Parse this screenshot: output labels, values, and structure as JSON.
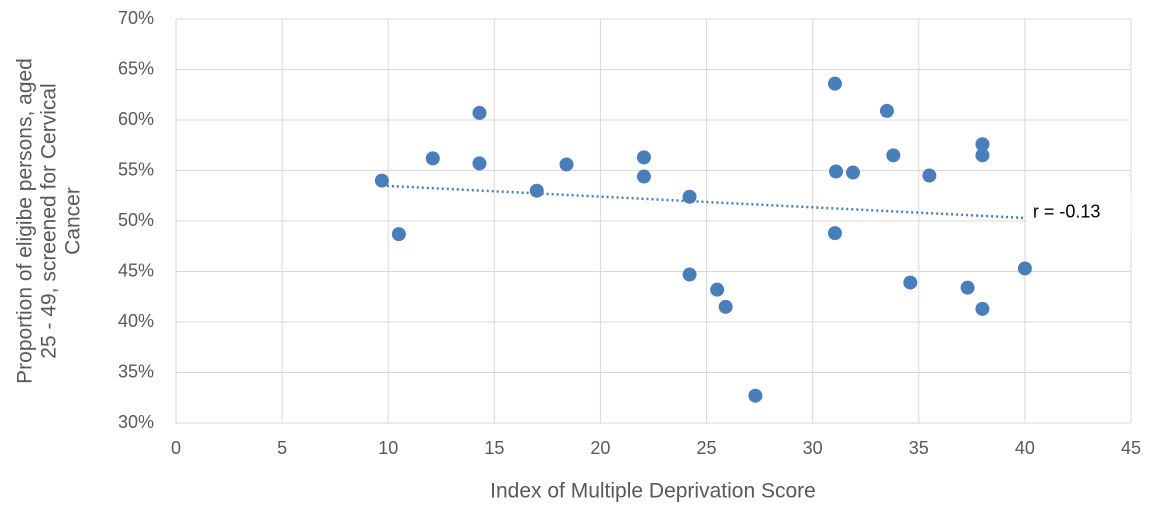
{
  "chart_data": {
    "type": "scatter",
    "x_label": "Index of Multiple Deprivation Score",
    "y_label": [
      "Proportion of eligibe persons, aged",
      "25 - 49, screened for Cervical",
      "Cancer"
    ],
    "annotation": "r = -0.13",
    "color": "#4a7ebb",
    "x": [
      9.7,
      10.5,
      12.1,
      14.3,
      14.3,
      17.0,
      18.4,
      22.05,
      22.05,
      24.2,
      24.2,
      25.5,
      25.9,
      27.3,
      31.05,
      31.1,
      31.05,
      31.9,
      33.5,
      33.8,
      35.5,
      34.6,
      37.3,
      38.0,
      38.0,
      38.0,
      40.0
    ],
    "values": [
      54.0,
      48.7,
      56.2,
      60.7,
      55.7,
      53.0,
      55.6,
      56.3,
      54.4,
      44.7,
      52.4,
      43.2,
      41.5,
      32.7,
      63.6,
      54.9,
      48.8,
      54.8,
      60.9,
      56.5,
      54.5,
      43.9,
      43.4,
      57.6,
      56.5,
      41.3,
      45.3
    ],
    "trendline": {
      "x": [
        9.7,
        40.0
      ],
      "values": [
        53.5,
        50.3
      ]
    },
    "xlim": [
      0,
      45
    ],
    "xticks": [
      0,
      5,
      10,
      15,
      20,
      25,
      30,
      35,
      40,
      45
    ],
    "ylim": [
      30,
      70
    ],
    "yticks": [
      {
        "value": 30,
        "label": "30%"
      },
      {
        "value": 35,
        "label": "35%"
      },
      {
        "value": 40,
        "label": "40%"
      },
      {
        "value": 45,
        "label": "45%"
      },
      {
        "value": 50,
        "label": "50%"
      },
      {
        "value": 55,
        "label": "55%"
      },
      {
        "value": 60,
        "label": "60%"
      },
      {
        "value": 65,
        "label": "65%"
      },
      {
        "value": 70,
        "label": "70%"
      }
    ],
    "grid": true
  }
}
